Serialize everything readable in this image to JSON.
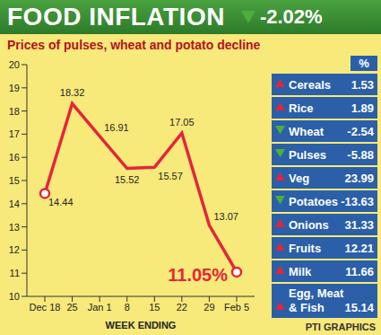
{
  "chart_data": {
    "type": "line",
    "title": "FOOD INFLATION",
    "subtitle": "Prices of pulses, wheat and potato decline",
    "x_label": "WEEK ENDING",
    "categories": [
      "Dec 18",
      "25",
      "Jan 1",
      "8",
      "15",
      "22",
      "29",
      "Feb 5"
    ],
    "values": [
      14.44,
      18.32,
      16.91,
      15.52,
      15.57,
      17.05,
      13.07,
      11.05
    ],
    "value_labels": [
      "14.44",
      "18.32",
      "16.91",
      "15.52",
      "15.57",
      "17.05",
      "13.07",
      "11.05%"
    ],
    "color": "#e3263a",
    "ylim": [
      10,
      20
    ],
    "yticks": [
      10,
      11,
      12,
      13,
      14,
      15,
      16,
      17,
      18,
      19,
      20
    ],
    "grid": false,
    "data_labels": true
  },
  "headline": {
    "value": -2.02,
    "label": "-2.02%"
  },
  "table": {
    "unit": "%",
    "rows": [
      {
        "label": "Cereals",
        "value": 1.53
      },
      {
        "label": "Rice",
        "value": 1.89
      },
      {
        "label": "Wheat",
        "value": -2.54
      },
      {
        "label": "Pulses",
        "value": -5.88
      },
      {
        "label": "Veg",
        "value": 23.99
      },
      {
        "label": "Potatoes",
        "value": -13.63
      },
      {
        "label": "Onions",
        "value": 31.33
      },
      {
        "label": "Fruits",
        "value": 12.21
      },
      {
        "label": "Milk",
        "value": 11.66
      },
      {
        "label": "Egg, Meat & Fish",
        "value": 15.14
      }
    ]
  },
  "credit": "PTI GRAPHICS"
}
